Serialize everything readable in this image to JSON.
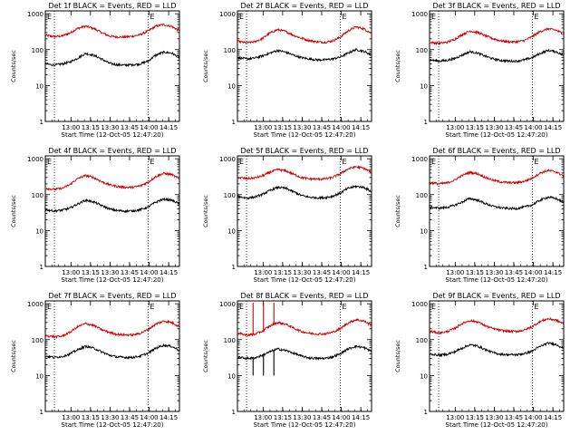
{
  "page": {
    "background": "#ffffff"
  },
  "common": {
    "type": "line",
    "ylabel": "Counts/sec",
    "xlabel": "Start Time (12-Oct-05 12:47:20)",
    "xticks": [
      "13:00",
      "13:15",
      "13:30",
      "13:45",
      "14:00",
      "14:15"
    ],
    "yticks": [
      "1",
      "10",
      "100",
      "1000"
    ],
    "ylog": true,
    "ylim": [
      1,
      1200
    ],
    "xlim_minutes": [
      -7,
      96
    ],
    "event_marker": "E",
    "vlines_minutes": [
      0,
      72
    ],
    "colors": {
      "events": "#000000",
      "lld": "#cc0000",
      "axis": "#000000"
    }
  },
  "chart_data": [
    {
      "type": "line",
      "title": "Det 1f BLACK = Events, RED = LLD",
      "series": [
        {
          "name": "LLD",
          "x": [
            -7,
            0,
            6,
            12,
            18,
            24,
            30,
            36,
            42,
            48,
            54,
            60,
            66,
            72,
            78,
            84,
            90,
            96
          ],
          "y": [
            250,
            230,
            240,
            290,
            390,
            450,
            390,
            300,
            240,
            225,
            225,
            235,
            260,
            330,
            450,
            500,
            440,
            330
          ]
        },
        {
          "name": "Events",
          "x": [
            -7,
            0,
            6,
            12,
            18,
            24,
            30,
            36,
            42,
            48,
            54,
            60,
            66,
            72,
            78,
            84,
            90,
            96
          ],
          "y": [
            40,
            37,
            40,
            45,
            58,
            78,
            70,
            55,
            42,
            38,
            37,
            38,
            40,
            48,
            70,
            85,
            80,
            60
          ]
        }
      ]
    },
    {
      "type": "line",
      "title": "Det 2f BLACK = Events, RED = LLD",
      "series": [
        {
          "name": "LLD",
          "x": [
            -7,
            0,
            6,
            12,
            18,
            24,
            30,
            36,
            42,
            48,
            54,
            60,
            66,
            72,
            78,
            84,
            90,
            96
          ],
          "y": [
            170,
            155,
            165,
            200,
            290,
            360,
            320,
            250,
            210,
            180,
            165,
            160,
            175,
            220,
            330,
            430,
            380,
            280
          ]
        },
        {
          "name": "Events",
          "x": [
            -7,
            0,
            6,
            12,
            18,
            24,
            30,
            36,
            42,
            48,
            54,
            60,
            66,
            72,
            78,
            84,
            90,
            96
          ],
          "y": [
            60,
            55,
            58,
            66,
            80,
            95,
            85,
            70,
            60,
            55,
            52,
            52,
            55,
            62,
            80,
            100,
            90,
            70
          ]
        }
      ]
    },
    {
      "type": "line",
      "title": "Det 3f BLACK = Events, RED = LLD",
      "series": [
        {
          "name": "LLD",
          "x": [
            -7,
            0,
            6,
            12,
            18,
            24,
            30,
            36,
            42,
            48,
            54,
            60,
            66,
            72,
            78,
            84,
            90,
            96
          ],
          "y": [
            160,
            150,
            160,
            190,
            260,
            330,
            300,
            240,
            200,
            175,
            165,
            165,
            180,
            230,
            320,
            380,
            350,
            270
          ]
        },
        {
          "name": "Events",
          "x": [
            -7,
            0,
            6,
            12,
            18,
            24,
            30,
            36,
            42,
            48,
            54,
            60,
            66,
            72,
            78,
            84,
            90,
            96
          ],
          "y": [
            52,
            48,
            50,
            56,
            70,
            88,
            80,
            65,
            55,
            50,
            48,
            48,
            52,
            60,
            78,
            95,
            88,
            68
          ]
        }
      ]
    },
    {
      "type": "line",
      "title": "Det 4f BLACK = Events, RED = LLD",
      "series": [
        {
          "name": "LLD",
          "x": [
            -7,
            0,
            6,
            12,
            18,
            24,
            30,
            36,
            42,
            48,
            54,
            60,
            66,
            72,
            78,
            84,
            90,
            96
          ],
          "y": [
            150,
            140,
            150,
            190,
            280,
            340,
            300,
            230,
            190,
            170,
            160,
            160,
            175,
            220,
            320,
            390,
            360,
            270
          ]
        },
        {
          "name": "Events",
          "x": [
            -7,
            0,
            6,
            12,
            18,
            24,
            30,
            36,
            42,
            48,
            54,
            60,
            66,
            72,
            78,
            84,
            90,
            96
          ],
          "y": [
            38,
            35,
            37,
            42,
            55,
            70,
            63,
            50,
            40,
            36,
            35,
            35,
            38,
            45,
            62,
            75,
            70,
            55
          ]
        }
      ]
    },
    {
      "type": "line",
      "title": "Det 5f BLACK = Events, RED = LLD",
      "series": [
        {
          "name": "LLD",
          "x": [
            -7,
            0,
            6,
            12,
            18,
            24,
            30,
            36,
            42,
            48,
            54,
            60,
            66,
            72,
            78,
            84,
            90,
            96
          ],
          "y": [
            300,
            280,
            290,
            330,
            420,
            500,
            460,
            370,
            300,
            275,
            270,
            275,
            300,
            380,
            520,
            600,
            540,
            420
          ]
        },
        {
          "name": "Events",
          "x": [
            -7,
            0,
            6,
            12,
            18,
            24,
            30,
            36,
            42,
            48,
            54,
            60,
            66,
            72,
            78,
            84,
            90,
            96
          ],
          "y": [
            90,
            80,
            85,
            100,
            130,
            160,
            150,
            120,
            95,
            85,
            82,
            82,
            90,
            110,
            150,
            170,
            160,
            120
          ]
        }
      ]
    },
    {
      "type": "line",
      "title": "Det 6f BLACK = Events, RED = LLD",
      "series": [
        {
          "name": "LLD",
          "x": [
            -7,
            0,
            6,
            12,
            18,
            24,
            30,
            36,
            42,
            48,
            54,
            60,
            66,
            72,
            78,
            84,
            90,
            96
          ],
          "y": [
            220,
            200,
            210,
            250,
            340,
            420,
            380,
            300,
            250,
            225,
            215,
            215,
            235,
            290,
            400,
            470,
            430,
            330
          ]
        },
        {
          "name": "Events",
          "x": [
            -7,
            0,
            6,
            12,
            18,
            24,
            30,
            36,
            42,
            48,
            54,
            60,
            66,
            72,
            78,
            84,
            90,
            96
          ],
          "y": [
            45,
            42,
            44,
            50,
            62,
            78,
            70,
            56,
            47,
            43,
            41,
            41,
            45,
            52,
            70,
            85,
            78,
            60
          ]
        }
      ]
    },
    {
      "type": "line",
      "title": "Det 7f BLACK = Events, RED = LLD",
      "series": [
        {
          "name": "LLD",
          "x": [
            -7,
            0,
            6,
            12,
            18,
            24,
            30,
            36,
            42,
            48,
            54,
            60,
            66,
            72,
            78,
            84,
            90,
            96
          ],
          "y": [
            130,
            120,
            125,
            160,
            230,
            280,
            250,
            190,
            160,
            140,
            135,
            135,
            150,
            190,
            270,
            330,
            300,
            230
          ]
        },
        {
          "name": "Events",
          "x": [
            -7,
            0,
            6,
            12,
            18,
            24,
            30,
            36,
            42,
            48,
            54,
            60,
            66,
            72,
            78,
            84,
            90,
            96
          ],
          "y": [
            35,
            32,
            34,
            40,
            52,
            65,
            58,
            46,
            37,
            33,
            32,
            32,
            35,
            42,
            58,
            70,
            65,
            50
          ]
        }
      ]
    },
    {
      "type": "line",
      "title": "Det 8f BLACK = Events, RED = LLD",
      "spikes_minutes": [
        5,
        13,
        21
      ],
      "series": [
        {
          "name": "LLD",
          "x": [
            -7,
            0,
            6,
            12,
            18,
            24,
            30,
            36,
            42,
            48,
            54,
            60,
            66,
            72,
            78,
            84,
            90,
            96
          ],
          "y": [
            150,
            135,
            140,
            170,
            240,
            300,
            270,
            210,
            170,
            150,
            145,
            145,
            160,
            200,
            290,
            360,
            330,
            250
          ]
        },
        {
          "name": "Events",
          "x": [
            -7,
            0,
            6,
            12,
            18,
            24,
            30,
            36,
            42,
            48,
            54,
            60,
            66,
            72,
            78,
            84,
            90,
            96
          ],
          "y": [
            33,
            30,
            31,
            36,
            46,
            55,
            50,
            42,
            35,
            31,
            30,
            30,
            33,
            40,
            55,
            65,
            60,
            47
          ]
        }
      ]
    },
    {
      "type": "line",
      "title": "Det 9f BLACK = Events, RED = LLD",
      "series": [
        {
          "name": "LLD",
          "x": [
            -7,
            0,
            6,
            12,
            18,
            24,
            30,
            36,
            42,
            48,
            54,
            60,
            66,
            72,
            78,
            84,
            90,
            96
          ],
          "y": [
            170,
            155,
            165,
            200,
            280,
            340,
            310,
            240,
            200,
            180,
            170,
            170,
            185,
            230,
            320,
            380,
            350,
            270
          ]
        },
        {
          "name": "Events",
          "x": [
            -7,
            0,
            6,
            12,
            18,
            24,
            30,
            36,
            42,
            48,
            54,
            60,
            66,
            72,
            78,
            84,
            90,
            96
          ],
          "y": [
            40,
            37,
            39,
            45,
            58,
            72,
            66,
            52,
            43,
            39,
            38,
            38,
            41,
            48,
            65,
            80,
            74,
            57
          ]
        }
      ]
    }
  ]
}
